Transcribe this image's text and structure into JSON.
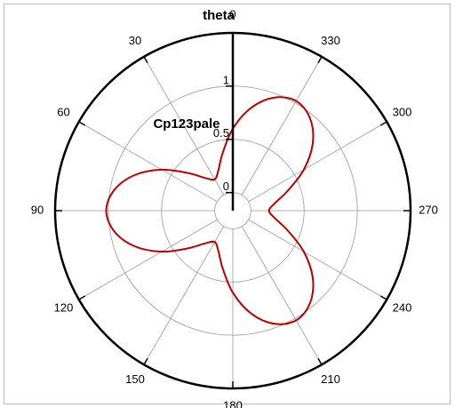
{
  "chart_data": {
    "type": "polar-line",
    "theta_label": "theta",
    "r_label": "Cp123pale",
    "theta": [
      0,
      10,
      20,
      30,
      40,
      50,
      60,
      70,
      80,
      90,
      100,
      110,
      120,
      130,
      140,
      150,
      160,
      170,
      180,
      190,
      200,
      210,
      220,
      230,
      240,
      250,
      260,
      270,
      280,
      290,
      300,
      310,
      320,
      330,
      340,
      350
    ],
    "series": [
      {
        "color": "#c00000",
        "values": [
          0.6,
          0.38,
          0.23,
          0.17,
          0.23,
          0.38,
          0.6,
          0.81,
          0.96,
          1.02,
          0.96,
          0.81,
          0.6,
          0.38,
          0.23,
          0.17,
          0.23,
          0.38,
          0.6,
          0.81,
          0.96,
          1.02,
          0.96,
          0.81,
          0.6,
          0.38,
          0.23,
          0.17,
          0.23,
          0.38,
          0.6,
          0.81,
          0.96,
          1.02,
          0.96,
          0.81
        ]
      }
    ],
    "thetaticks": [
      0,
      30,
      60,
      90,
      120,
      150,
      180,
      210,
      240,
      270,
      300,
      330
    ],
    "rlim": [
      -0.17,
      1.5
    ],
    "rticks": [
      0,
      0.5,
      1
    ],
    "grid": true
  }
}
